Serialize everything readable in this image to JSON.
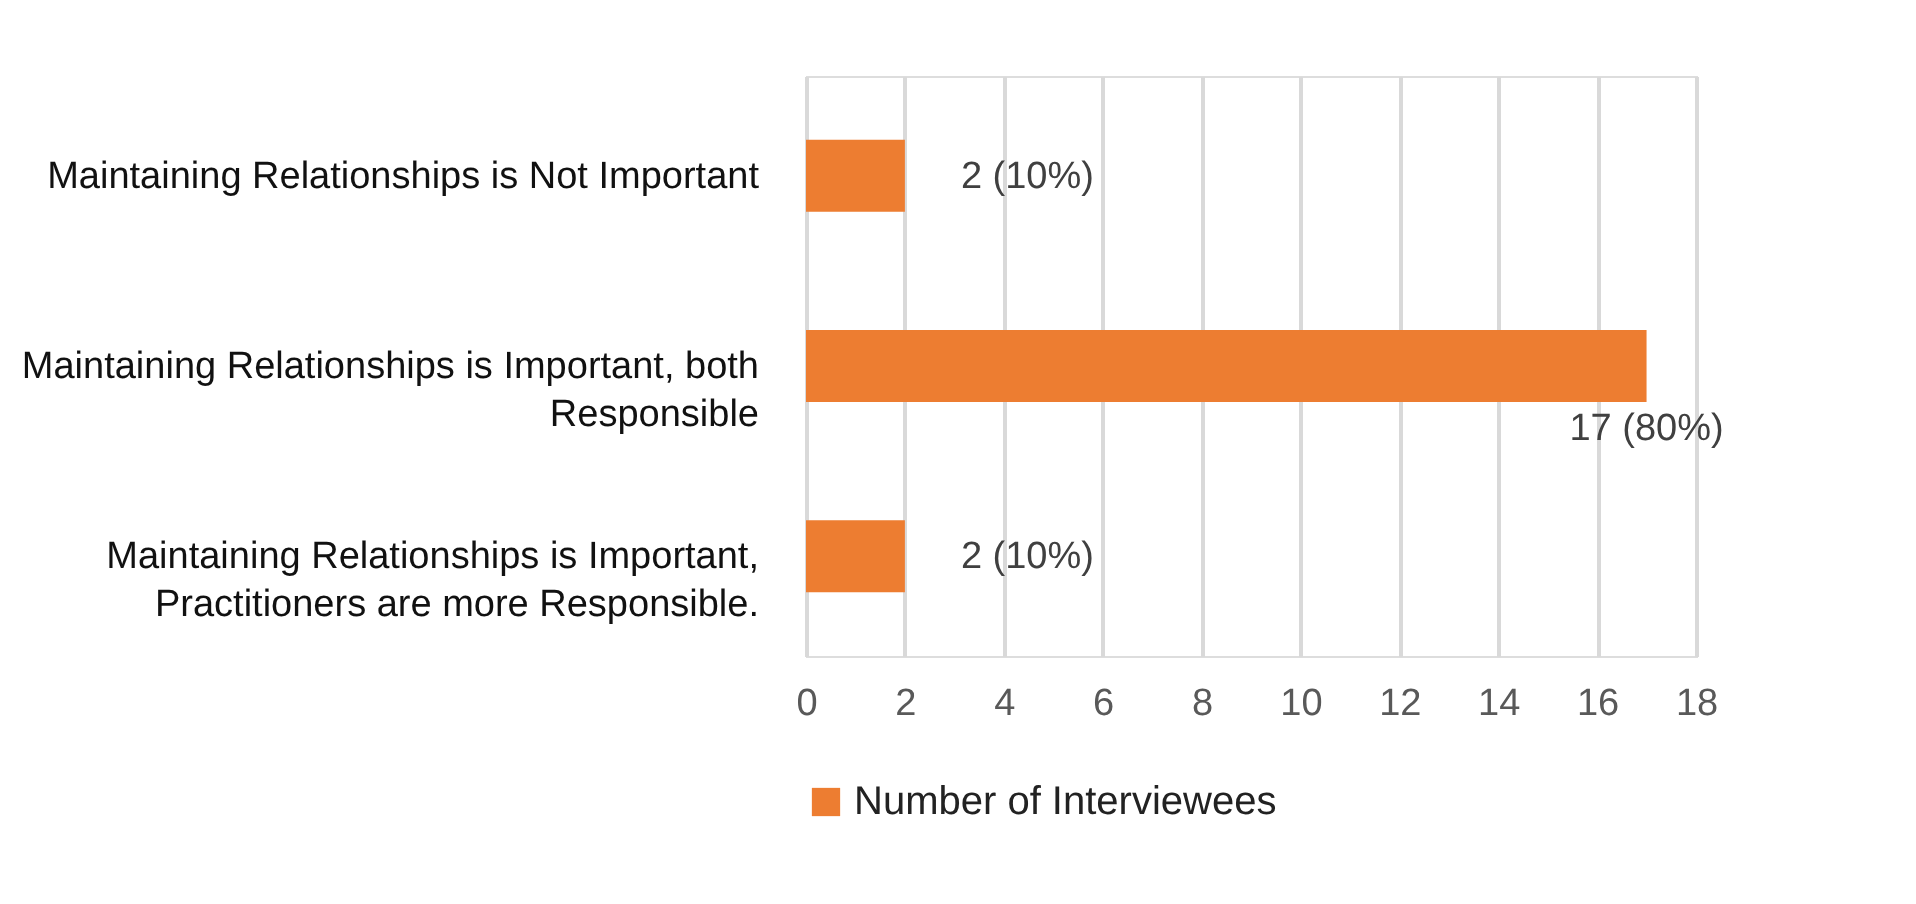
{
  "chart_data": {
    "type": "bar",
    "orientation": "horizontal",
    "categories": [
      "Maintaining Relationships is Not Important",
      "Maintaining Relationships is Important, both Responsible",
      "Maintaining Relationships is Important, Practitioners are more Responsible."
    ],
    "series": [
      {
        "name": "Number of Interviewees",
        "color": "#ed7d31",
        "values": [
          2,
          17,
          2
        ],
        "value_labels": [
          "2 (10%)",
          "17 (80%)",
          "2 (10%)"
        ]
      }
    ],
    "xlim": [
      0,
      18
    ],
    "xticks": [
      0,
      2,
      4,
      6,
      8,
      10,
      12,
      14,
      16,
      18
    ],
    "grid": "x",
    "legend": "bottom"
  }
}
